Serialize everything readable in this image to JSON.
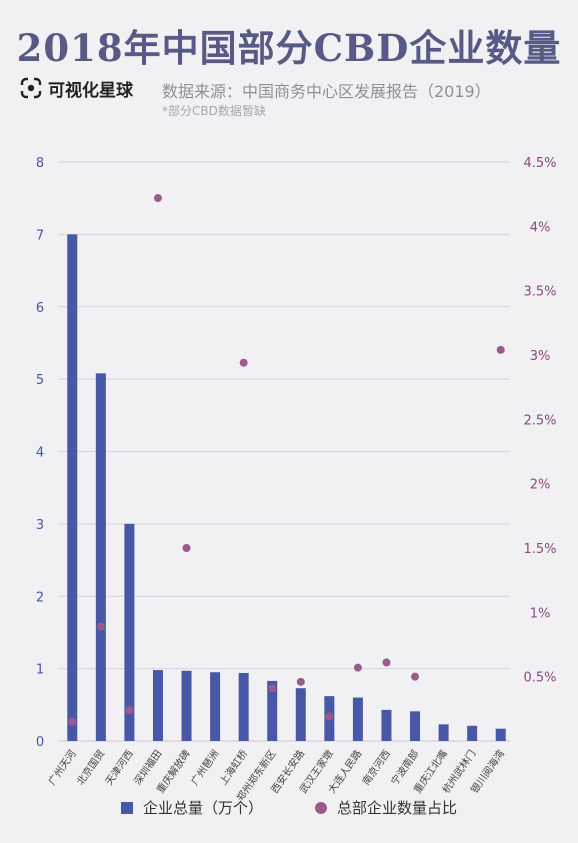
{
  "header": {
    "title": "2018年中国部分CBD企业数量",
    "brand": "可视化星球",
    "source": "数据来源：中国商务中心区发展报告（2019）",
    "note": "*部分CBD数据暂缺"
  },
  "colors": {
    "bar": "#4858a6",
    "dot": "#9a5a8a",
    "left_axis": "#4858a6",
    "right_axis": "#8a4a80",
    "grid": "#d4d4da"
  },
  "chart_data": {
    "type": "bar",
    "categories": [
      "广州天河",
      "北京国贸",
      "天津河西",
      "深圳福田",
      "重庆解放碑",
      "广州琶洲",
      "上海虹桥",
      "郑州郑东新区",
      "西安长安路",
      "武汉王家墩",
      "大连人民路",
      "南京河西",
      "宁波南部",
      "重庆江北嘴",
      "杭州武林门",
      "银川阅海湾"
    ],
    "series": [
      {
        "name": "企业总量（万个）",
        "type": "bar",
        "axis": "left",
        "values": [
          7.0,
          5.08,
          3.0,
          0.98,
          0.97,
          0.95,
          0.94,
          0.83,
          0.73,
          0.62,
          0.6,
          0.43,
          0.41,
          0.23,
          0.21,
          0.17
        ]
      },
      {
        "name": "总部企业数量占比",
        "type": "scatter",
        "axis": "right",
        "values": [
          0.15,
          0.89,
          0.24,
          4.22,
          1.5,
          null,
          2.94,
          0.41,
          0.46,
          0.19,
          0.57,
          0.61,
          0.5,
          null,
          null,
          3.04
        ]
      }
    ],
    "left_ticks": [
      "0",
      "1",
      "2",
      "3",
      "4",
      "5",
      "6",
      "7",
      "8"
    ],
    "right_ticks": [
      "0.5%",
      "1%",
      "1.5%",
      "2%",
      "2.5%",
      "3%",
      "3.5%",
      "4%",
      "4.5%"
    ],
    "ylim_left": [
      0,
      8
    ],
    "ylim_right": [
      0,
      4.5
    ],
    "grid": true,
    "legend_position": "bottom"
  }
}
